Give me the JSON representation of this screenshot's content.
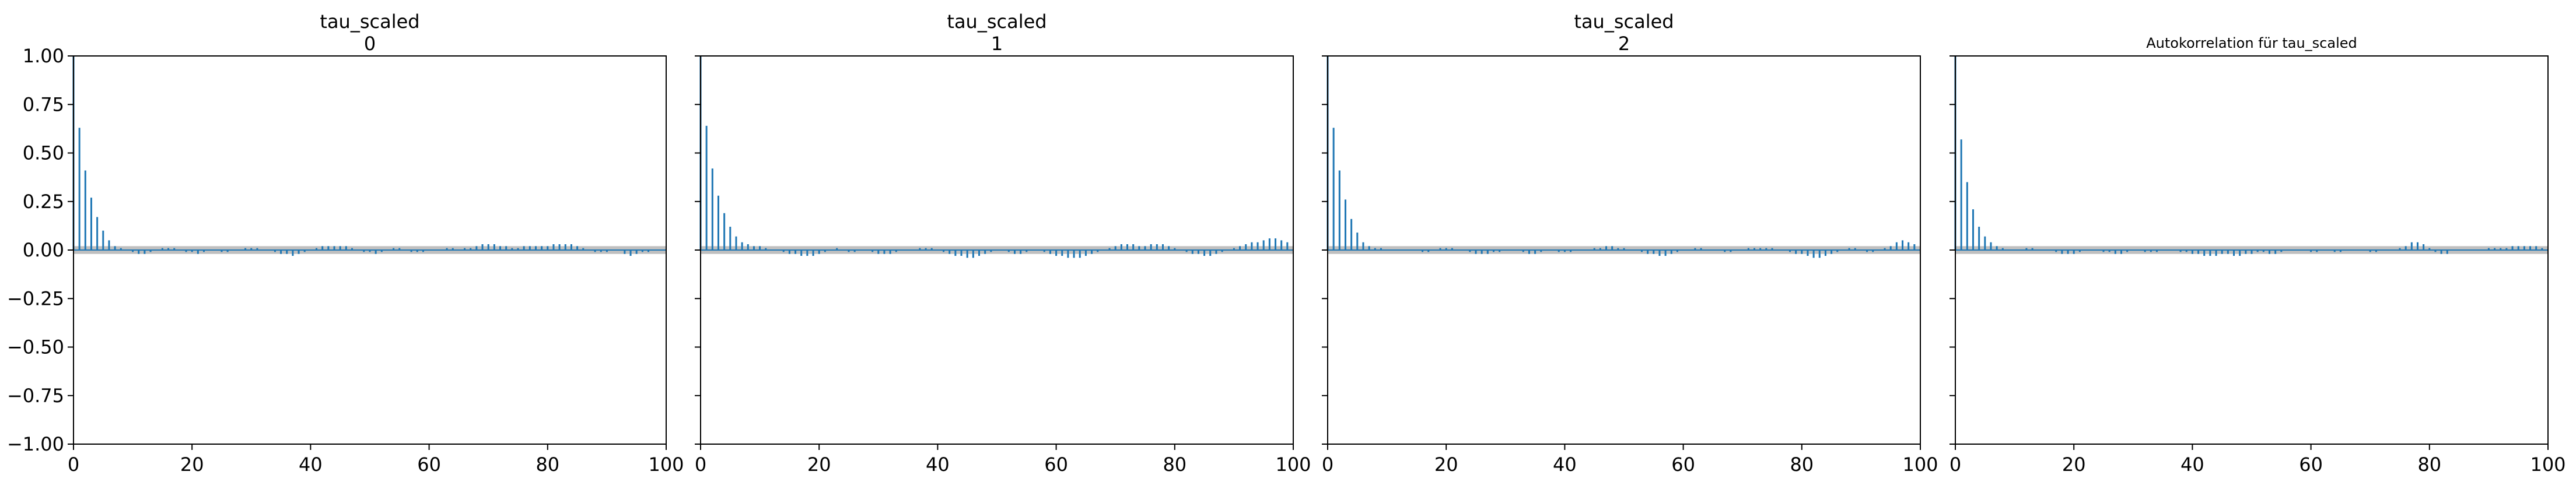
{
  "colors": {
    "series": "#1f77b4",
    "confidence_band": "#bfbfbf",
    "axis": "#000000",
    "background": "#ffffff"
  },
  "chart_data": [
    {
      "type": "bar",
      "title": "tau_scaled",
      "subtitle": "0",
      "xlabel": "",
      "ylabel": "",
      "xlim": [
        0,
        100
      ],
      "ylim": [
        -1.0,
        1.0
      ],
      "xticks": [
        "0",
        "20",
        "40",
        "60",
        "80",
        "100"
      ],
      "yticks": [
        "1.00",
        "0.75",
        "0.50",
        "0.25",
        "0.00",
        "−0.25",
        "−0.50",
        "−0.75",
        "−1.00"
      ],
      "grid": false,
      "confidence_band": [
        -0.02,
        0.02
      ],
      "series": [
        {
          "x_start": 0,
          "values": [
            1.0,
            0.63,
            0.41,
            0.27,
            0.17,
            0.1,
            0.05,
            0.02,
            0.01,
            0.0,
            -0.01,
            -0.02,
            -0.02,
            -0.01,
            0.0,
            0.01,
            0.01,
            0.01,
            0.0,
            -0.01,
            -0.01,
            -0.02,
            -0.01,
            0.0,
            0.0,
            -0.01,
            -0.01,
            0.0,
            0.0,
            0.01,
            0.01,
            0.01,
            0.0,
            0.0,
            -0.01,
            -0.02,
            -0.02,
            -0.03,
            -0.02,
            -0.01,
            0.0,
            0.01,
            0.02,
            0.02,
            0.02,
            0.02,
            0.02,
            0.01,
            0.0,
            -0.01,
            -0.01,
            -0.02,
            -0.01,
            0.0,
            0.01,
            0.01,
            0.0,
            -0.01,
            -0.01,
            -0.01,
            0.0,
            0.0,
            0.0,
            0.01,
            0.01,
            0.0,
            0.01,
            0.01,
            0.02,
            0.03,
            0.03,
            0.03,
            0.02,
            0.02,
            0.01,
            0.01,
            0.02,
            0.02,
            0.02,
            0.02,
            0.02,
            0.03,
            0.03,
            0.03,
            0.03,
            0.02,
            0.01,
            0.0,
            -0.01,
            -0.01,
            -0.01,
            0.0,
            0.0,
            -0.02,
            -0.03,
            -0.02,
            -0.01,
            -0.01,
            0.0,
            0.0
          ]
        }
      ]
    },
    {
      "type": "bar",
      "title": "tau_scaled",
      "subtitle": "1",
      "xlabel": "",
      "ylabel": "",
      "xlim": [
        0,
        100
      ],
      "ylim": [
        -1.0,
        1.0
      ],
      "xticks": [
        "0",
        "20",
        "40",
        "60",
        "80",
        "100"
      ],
      "grid": false,
      "confidence_band": [
        -0.02,
        0.02
      ],
      "series": [
        {
          "x_start": 0,
          "values": [
            1.0,
            0.64,
            0.42,
            0.28,
            0.19,
            0.12,
            0.07,
            0.04,
            0.03,
            0.02,
            0.02,
            0.01,
            0.0,
            0.0,
            -0.01,
            -0.02,
            -0.02,
            -0.03,
            -0.03,
            -0.03,
            -0.02,
            -0.01,
            0.0,
            0.01,
            0.0,
            -0.01,
            -0.01,
            0.0,
            0.0,
            -0.01,
            -0.02,
            -0.02,
            -0.02,
            -0.01,
            0.0,
            0.0,
            0.0,
            0.01,
            0.01,
            0.01,
            0.0,
            -0.01,
            -0.02,
            -0.03,
            -0.03,
            -0.04,
            -0.04,
            -0.03,
            -0.02,
            -0.01,
            0.0,
            0.0,
            -0.01,
            -0.02,
            -0.02,
            -0.01,
            0.0,
            0.0,
            -0.01,
            -0.02,
            -0.03,
            -0.03,
            -0.04,
            -0.04,
            -0.04,
            -0.03,
            -0.02,
            -0.01,
            0.0,
            0.01,
            0.02,
            0.03,
            0.03,
            0.03,
            0.02,
            0.02,
            0.03,
            0.03,
            0.03,
            0.02,
            0.01,
            0.0,
            -0.01,
            -0.02,
            -0.02,
            -0.03,
            -0.03,
            -0.02,
            -0.01,
            0.0,
            0.01,
            0.02,
            0.03,
            0.04,
            0.04,
            0.05,
            0.06,
            0.06,
            0.05,
            0.04
          ]
        }
      ]
    },
    {
      "type": "bar",
      "title": "tau_scaled",
      "subtitle": "2",
      "xlabel": "",
      "ylabel": "",
      "xlim": [
        0,
        100
      ],
      "ylim": [
        -1.0,
        1.0
      ],
      "xticks": [
        "0",
        "20",
        "40",
        "60",
        "80",
        "100"
      ],
      "grid": false,
      "confidence_band": [
        -0.02,
        0.02
      ],
      "series": [
        {
          "x_start": 0,
          "values": [
            1.0,
            0.63,
            0.41,
            0.26,
            0.16,
            0.09,
            0.04,
            0.02,
            0.01,
            0.01,
            0.0,
            0.0,
            0.0,
            0.0,
            0.0,
            0.0,
            -0.01,
            -0.01,
            0.0,
            0.01,
            0.01,
            0.01,
            0.0,
            0.0,
            -0.01,
            -0.02,
            -0.02,
            -0.02,
            -0.01,
            -0.01,
            0.0,
            0.0,
            0.0,
            -0.01,
            -0.02,
            -0.02,
            -0.01,
            0.0,
            0.0,
            -0.01,
            -0.01,
            -0.01,
            0.0,
            0.0,
            0.0,
            0.01,
            0.01,
            0.02,
            0.02,
            0.01,
            0.01,
            0.0,
            0.0,
            -0.01,
            -0.02,
            -0.02,
            -0.03,
            -0.03,
            -0.02,
            -0.01,
            0.0,
            0.0,
            0.01,
            0.01,
            0.0,
            0.0,
            0.0,
            -0.01,
            -0.01,
            0.0,
            0.0,
            0.01,
            0.01,
            0.01,
            0.01,
            0.01,
            0.0,
            0.0,
            -0.01,
            -0.02,
            -0.02,
            -0.03,
            -0.04,
            -0.04,
            -0.03,
            -0.02,
            -0.01,
            0.0,
            0.01,
            0.01,
            0.0,
            -0.01,
            -0.01,
            0.0,
            0.01,
            0.02,
            0.04,
            0.05,
            0.04,
            0.03
          ]
        }
      ]
    },
    {
      "type": "bar",
      "title": "Autokorrelation für tau_scaled",
      "subtitle": "",
      "xlabel": "",
      "ylabel": "",
      "xlim": [
        0,
        100
      ],
      "ylim": [
        -1.0,
        1.0
      ],
      "xticks": [
        "0",
        "20",
        "40",
        "60",
        "80",
        "100"
      ],
      "grid": false,
      "confidence_band": [
        -0.02,
        0.02
      ],
      "series": [
        {
          "x_start": 0,
          "values": [
            1.0,
            0.57,
            0.35,
            0.21,
            0.12,
            0.07,
            0.04,
            0.02,
            0.01,
            0.0,
            0.0,
            0.0,
            0.01,
            0.01,
            0.0,
            0.0,
            0.0,
            -0.01,
            -0.02,
            -0.02,
            -0.02,
            -0.01,
            0.0,
            0.0,
            0.0,
            -0.01,
            -0.01,
            -0.02,
            -0.02,
            -0.01,
            0.0,
            0.0,
            -0.01,
            -0.01,
            -0.01,
            0.0,
            0.0,
            0.0,
            -0.01,
            -0.01,
            -0.02,
            -0.02,
            -0.03,
            -0.03,
            -0.03,
            -0.02,
            -0.02,
            -0.03,
            -0.03,
            -0.02,
            -0.02,
            -0.01,
            -0.01,
            -0.02,
            -0.02,
            -0.01,
            0.0,
            0.0,
            0.0,
            0.0,
            -0.01,
            -0.01,
            0.0,
            0.0,
            -0.01,
            -0.01,
            0.0,
            0.0,
            0.0,
            0.0,
            -0.01,
            -0.01,
            0.0,
            0.0,
            0.0,
            0.01,
            0.02,
            0.04,
            0.04,
            0.03,
            0.01,
            -0.01,
            -0.02,
            -0.02,
            0.0,
            0.0,
            0.0,
            0.0,
            0.0,
            0.0,
            0.01,
            0.01,
            0.01,
            0.01,
            0.02,
            0.02,
            0.02,
            0.02,
            0.02,
            0.01
          ]
        }
      ]
    }
  ]
}
